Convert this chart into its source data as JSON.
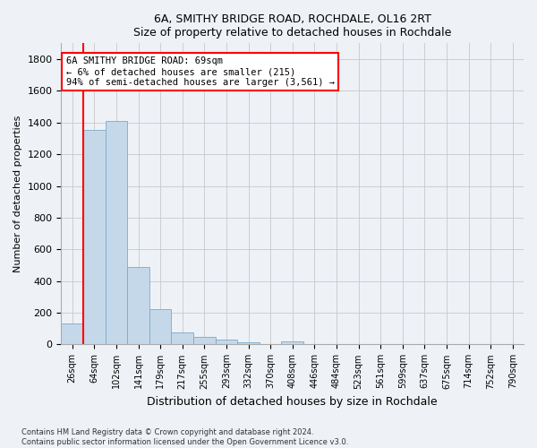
{
  "title_line1": "6A, SMITHY BRIDGE ROAD, ROCHDALE, OL16 2RT",
  "title_line2": "Size of property relative to detached houses in Rochdale",
  "xlabel": "Distribution of detached houses by size in Rochdale",
  "ylabel": "Number of detached properties",
  "bar_color": "#c5d8ea",
  "bar_edge_color": "#7aaac8",
  "categories": [
    "26sqm",
    "64sqm",
    "102sqm",
    "141sqm",
    "179sqm",
    "217sqm",
    "255sqm",
    "293sqm",
    "332sqm",
    "370sqm",
    "408sqm",
    "446sqm",
    "484sqm",
    "523sqm",
    "561sqm",
    "599sqm",
    "637sqm",
    "675sqm",
    "714sqm",
    "752sqm",
    "790sqm"
  ],
  "values": [
    135,
    1355,
    1410,
    490,
    225,
    75,
    45,
    28,
    15,
    0,
    20,
    0,
    0,
    0,
    0,
    0,
    0,
    0,
    0,
    0,
    0
  ],
  "ylim": [
    0,
    1900
  ],
  "yticks": [
    0,
    200,
    400,
    600,
    800,
    1000,
    1200,
    1400,
    1600,
    1800
  ],
  "vline_position": 0.5,
  "annotation_text": "6A SMITHY BRIDGE ROAD: 69sqm\n← 6% of detached houses are smaller (215)\n94% of semi-detached houses are larger (3,561) →",
  "annotation_box_color": "white",
  "annotation_box_edge_color": "red",
  "footer_line1": "Contains HM Land Registry data © Crown copyright and database right 2024.",
  "footer_line2": "Contains public sector information licensed under the Open Government Licence v3.0.",
  "bg_color": "#eef2f7",
  "grid_color": "#c8c8c8",
  "vline_color": "red",
  "title_fontsize": 9,
  "ylabel_fontsize": 8,
  "xlabel_fontsize": 9,
  "tick_fontsize": 8,
  "xtick_fontsize": 7,
  "annotation_fontsize": 7.5
}
